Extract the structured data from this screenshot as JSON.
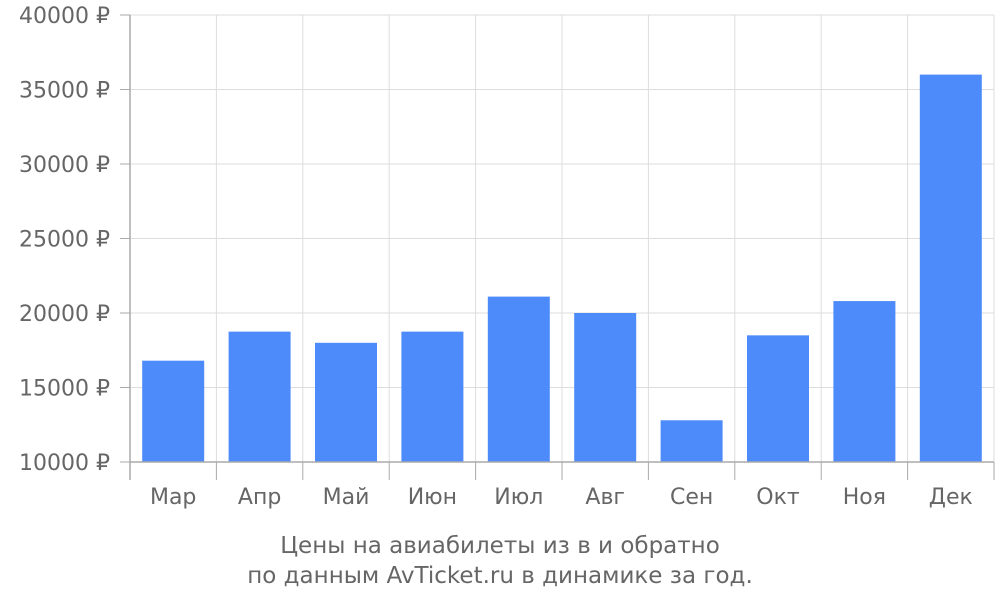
{
  "chart_data": {
    "type": "bar",
    "categories": [
      "Мар",
      "Апр",
      "Май",
      "Июн",
      "Июл",
      "Авг",
      "Сен",
      "Окт",
      "Ноя",
      "Дек"
    ],
    "values": [
      16800,
      18750,
      18000,
      18750,
      21100,
      20000,
      12800,
      18500,
      20800,
      36000
    ],
    "ylim": [
      10000,
      40000
    ],
    "y_ticks": [
      "10000 ₽",
      "15000 ₽",
      "20000 ₽",
      "25000 ₽",
      "30000 ₽",
      "35000 ₽",
      "40000 ₽"
    ],
    "y_tick_values": [
      10000,
      15000,
      20000,
      25000,
      30000,
      35000,
      40000
    ],
    "grid": true,
    "colors": {
      "bar": "#4d8afa",
      "grid": "#dddddd",
      "axis": "#aaaaaa",
      "text": "#666666"
    }
  },
  "caption": {
    "line1": "Цены на авиабилеты из  в  и обратно",
    "line2": "по данным AvTicket.ru в динамике за год."
  }
}
